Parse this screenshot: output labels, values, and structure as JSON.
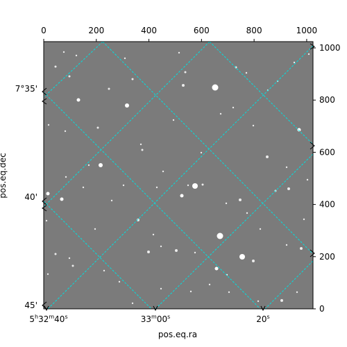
{
  "image": {
    "description_free": true,
    "pixel_axes": {
      "x_range": [
        0,
        1024
      ],
      "y_range": [
        0,
        1024
      ],
      "x_ticks": [
        "0",
        "200",
        "400",
        "600",
        "800",
        "1000"
      ],
      "x_tick_values": [
        0,
        200,
        400,
        600,
        800,
        1000
      ],
      "y_ticks": [
        "0",
        "200",
        "400",
        "600",
        "800",
        "1000"
      ],
      "y_tick_values": [
        0,
        200,
        400,
        600,
        800,
        1000
      ]
    },
    "world_axes": {
      "xlabel": "pos.eq.ra",
      "ylabel": "pos.eq.dec",
      "ra_ticks": [
        {
          "h": "5",
          "hs": "h",
          "m": "32",
          "ms": "m",
          "s": "40",
          "ss": "s"
        },
        {
          "h": "",
          "hs": "",
          "m": "33",
          "ms": "m",
          "s": "00",
          "ss": "s"
        },
        {
          "h": "",
          "hs": "",
          "m": "",
          "ms": "",
          "s": "20",
          "ss": "s"
        }
      ],
      "dec_ticks": [
        "7°35'",
        "40'",
        "45'"
      ]
    },
    "colors": {
      "background": "#7b7b7b",
      "grid": "#00e0e0",
      "frame": "#000000",
      "star": "#ffffff"
    }
  }
}
